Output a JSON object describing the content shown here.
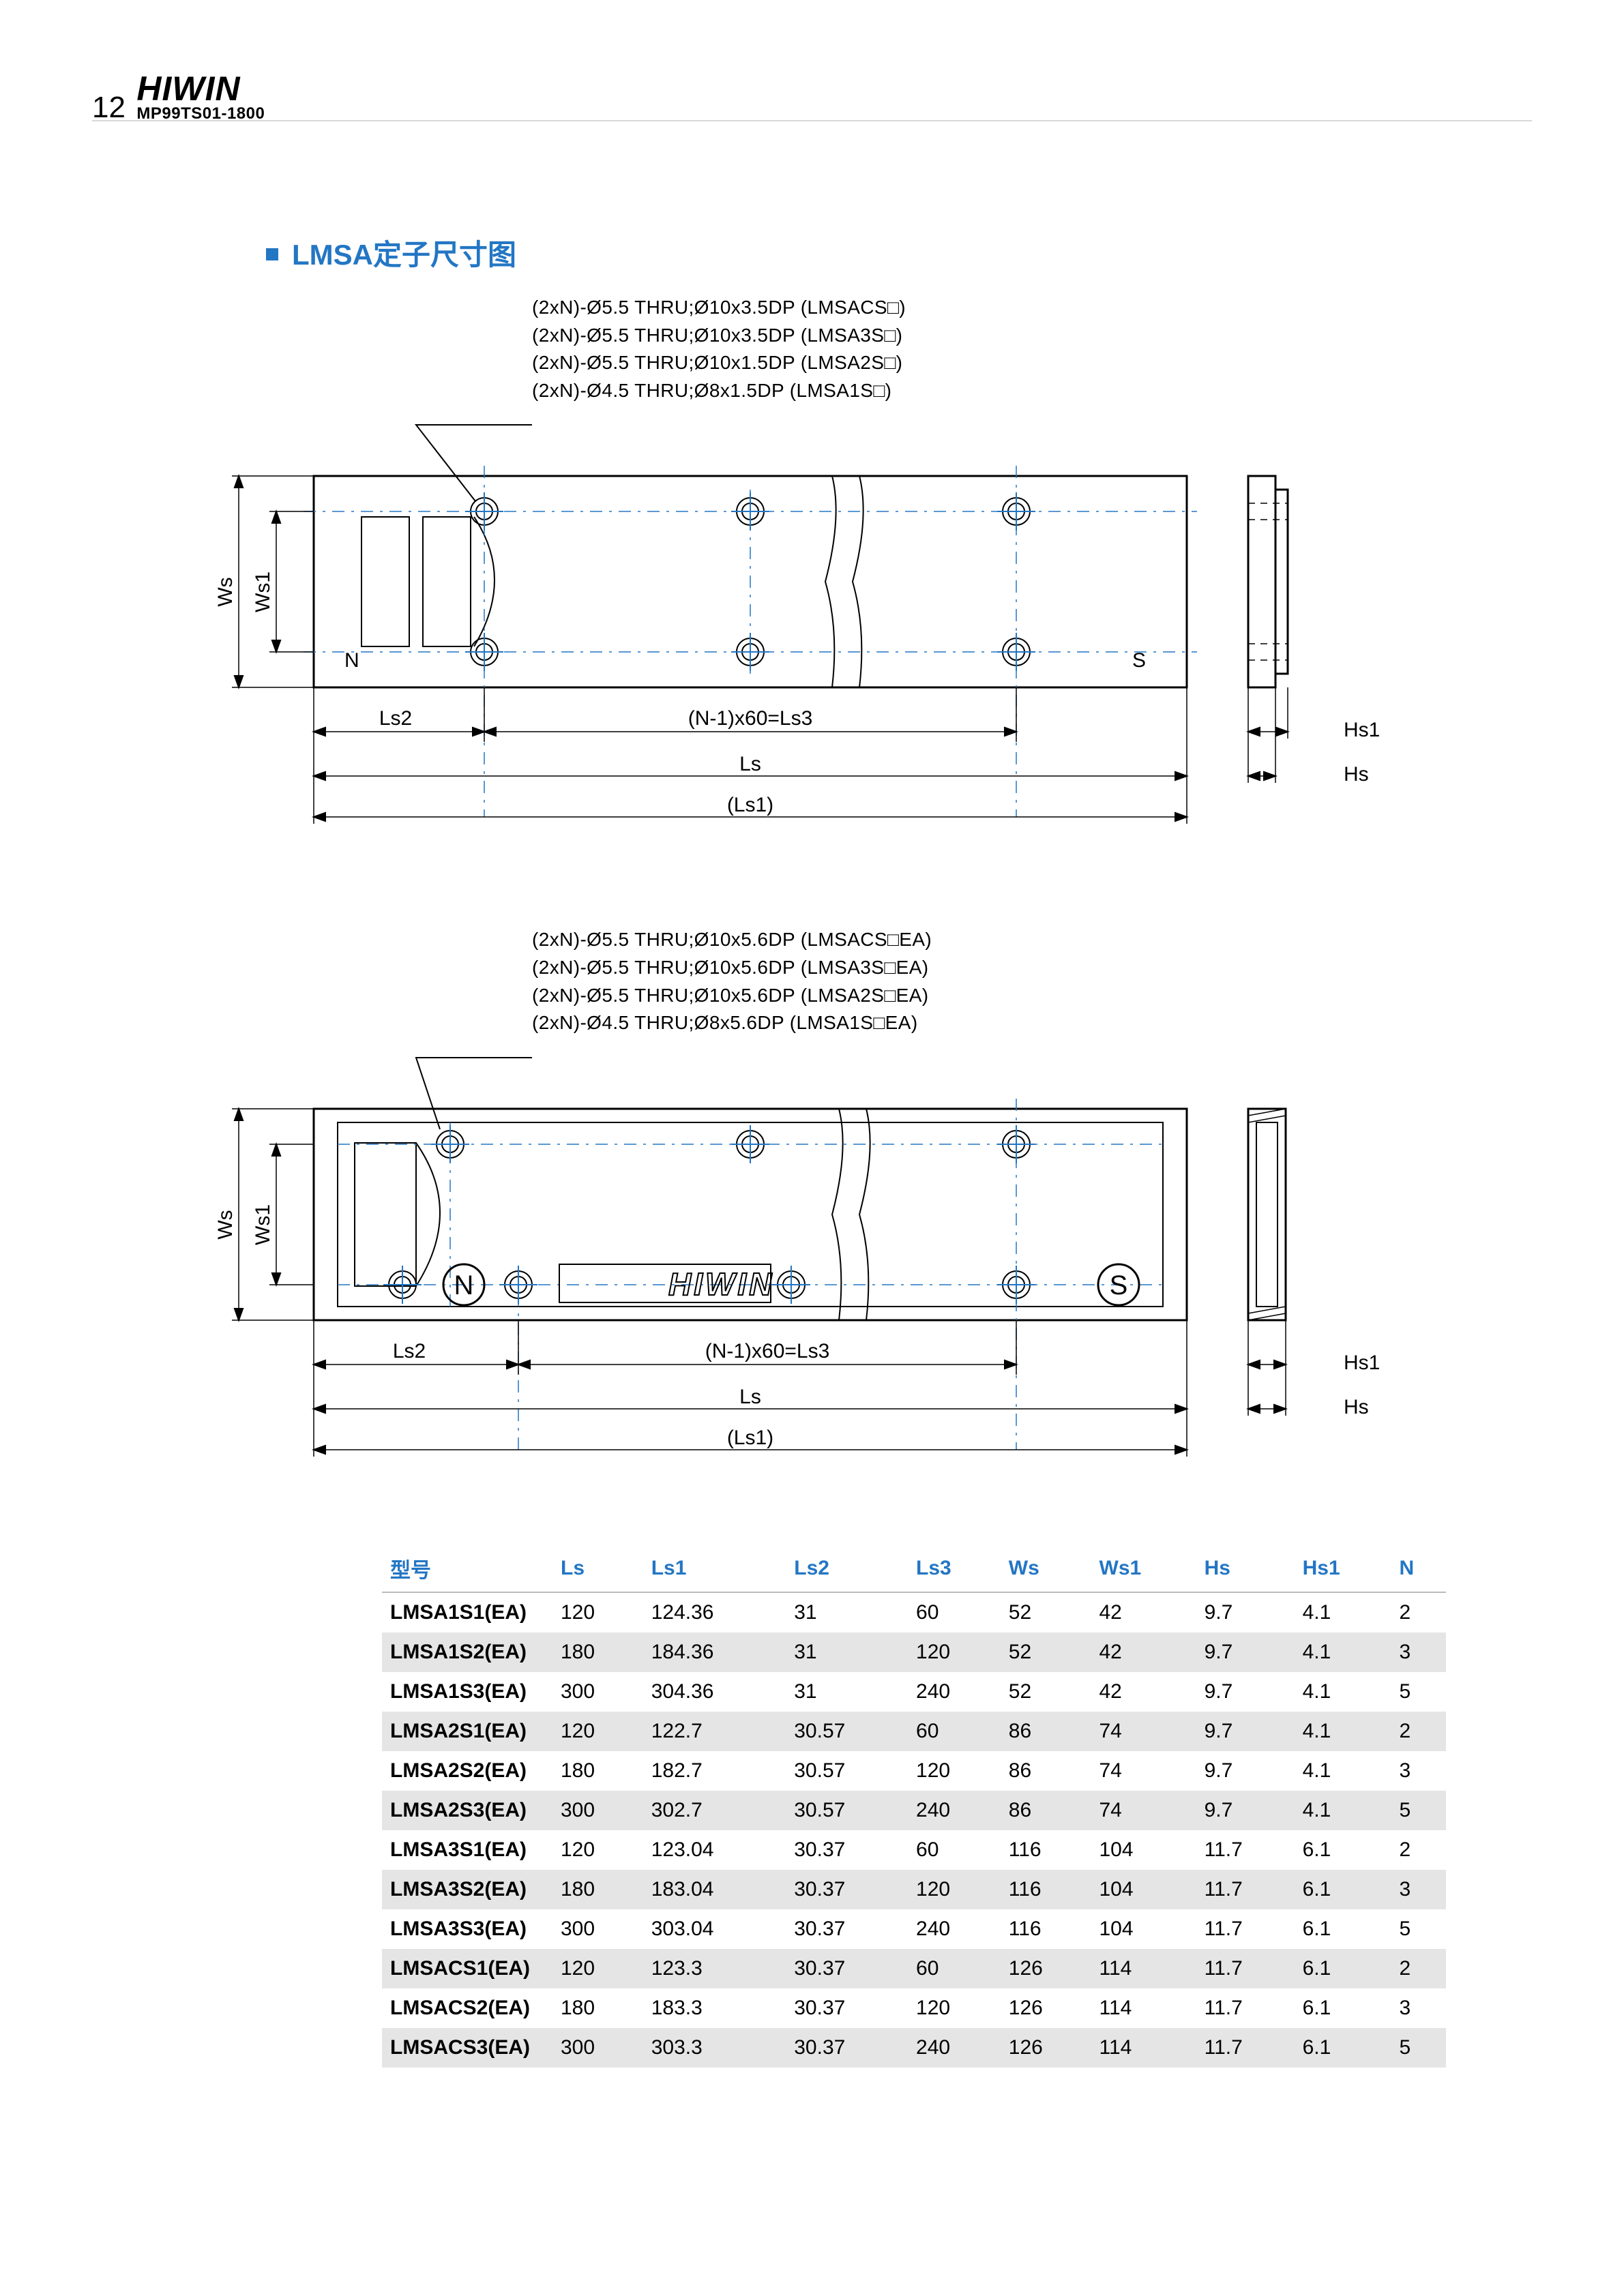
{
  "header": {
    "page_number": "12",
    "brand": "HIWIN",
    "doc_code": "MP99TS01-1800"
  },
  "section_title": "LMSA定子尺寸图",
  "drawing1": {
    "callouts": [
      "(2xN)-Ø5.5 THRU;Ø10x3.5DP (LMSACS□)",
      "(2xN)-Ø5.5 THRU;Ø10x3.5DP (LMSA3S□)",
      "(2xN)-Ø5.5 THRU;Ø10x1.5DP (LMSA2S□)",
      "(2xN)-Ø4.5 THRU;Ø8x1.5DP  (LMSA1S□)"
    ],
    "labels": {
      "Ws": "Ws",
      "Ws1": "Ws1",
      "Ls": "Ls",
      "Ls1": "(Ls1)",
      "Ls2": "Ls2",
      "Ls3": "(N-1)x60=Ls3",
      "Hs": "Hs",
      "Hs1": "Hs1",
      "N": "N",
      "S": "S"
    },
    "colors": {
      "line": "#000000",
      "accent": "#2376c4"
    }
  },
  "drawing2": {
    "callouts": [
      "(2xN)-Ø5.5 THRU;Ø10x5.6DP (LMSACS□EA)",
      "(2xN)-Ø5.5 THRU;Ø10x5.6DP (LMSA3S□EA)",
      "(2xN)-Ø5.5 THRU;Ø10x5.6DP (LMSA2S□EA)",
      "(2xN)-Ø4.5 THRU;Ø8x5.6DP  (LMSA1S□EA)"
    ],
    "labels": {
      "Ws": "Ws",
      "Ws1": "Ws1",
      "Ls": "Ls",
      "Ls1": "(Ls1)",
      "Ls2": "Ls2",
      "Ls3": "(N-1)x60=Ls3",
      "Hs": "Hs",
      "Hs1": "Hs1",
      "N": "N",
      "S": "S",
      "logo": "HIWIN"
    },
    "colors": {
      "line": "#000000",
      "accent": "#2376c4"
    }
  },
  "table": {
    "columns": [
      "型号",
      "Ls",
      "Ls1",
      "Ls2",
      "Ls3",
      "Ws",
      "Ws1",
      "Hs",
      "Hs1",
      "N"
    ],
    "rows": [
      [
        "LMSA1S1(EA)",
        "120",
        "124.36",
        "31",
        "60",
        "52",
        "42",
        "9.7",
        "4.1",
        "2"
      ],
      [
        "LMSA1S2(EA)",
        "180",
        "184.36",
        "31",
        "120",
        "52",
        "42",
        "9.7",
        "4.1",
        "3"
      ],
      [
        "LMSA1S3(EA)",
        "300",
        "304.36",
        "31",
        "240",
        "52",
        "42",
        "9.7",
        "4.1",
        "5"
      ],
      [
        "LMSA2S1(EA)",
        "120",
        "122.7",
        "30.57",
        "60",
        "86",
        "74",
        "9.7",
        "4.1",
        "2"
      ],
      [
        "LMSA2S2(EA)",
        "180",
        "182.7",
        "30.57",
        "120",
        "86",
        "74",
        "9.7",
        "4.1",
        "3"
      ],
      [
        "LMSA2S3(EA)",
        "300",
        "302.7",
        "30.57",
        "240",
        "86",
        "74",
        "9.7",
        "4.1",
        "5"
      ],
      [
        "LMSA3S1(EA)",
        "120",
        "123.04",
        "30.37",
        "60",
        "116",
        "104",
        "11.7",
        "6.1",
        "2"
      ],
      [
        "LMSA3S2(EA)",
        "180",
        "183.04",
        "30.37",
        "120",
        "116",
        "104",
        "11.7",
        "6.1",
        "3"
      ],
      [
        "LMSA3S3(EA)",
        "300",
        "303.04",
        "30.37",
        "240",
        "116",
        "104",
        "11.7",
        "6.1",
        "5"
      ],
      [
        "LMSACS1(EA)",
        "120",
        "123.3",
        "30.37",
        "60",
        "126",
        "114",
        "11.7",
        "6.1",
        "2"
      ],
      [
        "LMSACS2(EA)",
        "180",
        "183.3",
        "30.37",
        "120",
        "126",
        "114",
        "11.7",
        "6.1",
        "3"
      ],
      [
        "LMSACS3(EA)",
        "300",
        "303.3",
        "30.37",
        "240",
        "126",
        "114",
        "11.7",
        "6.1",
        "5"
      ]
    ],
    "header_color": "#2376c4",
    "row_alt_bg": "#e5e5e5",
    "fontsize": 30
  }
}
